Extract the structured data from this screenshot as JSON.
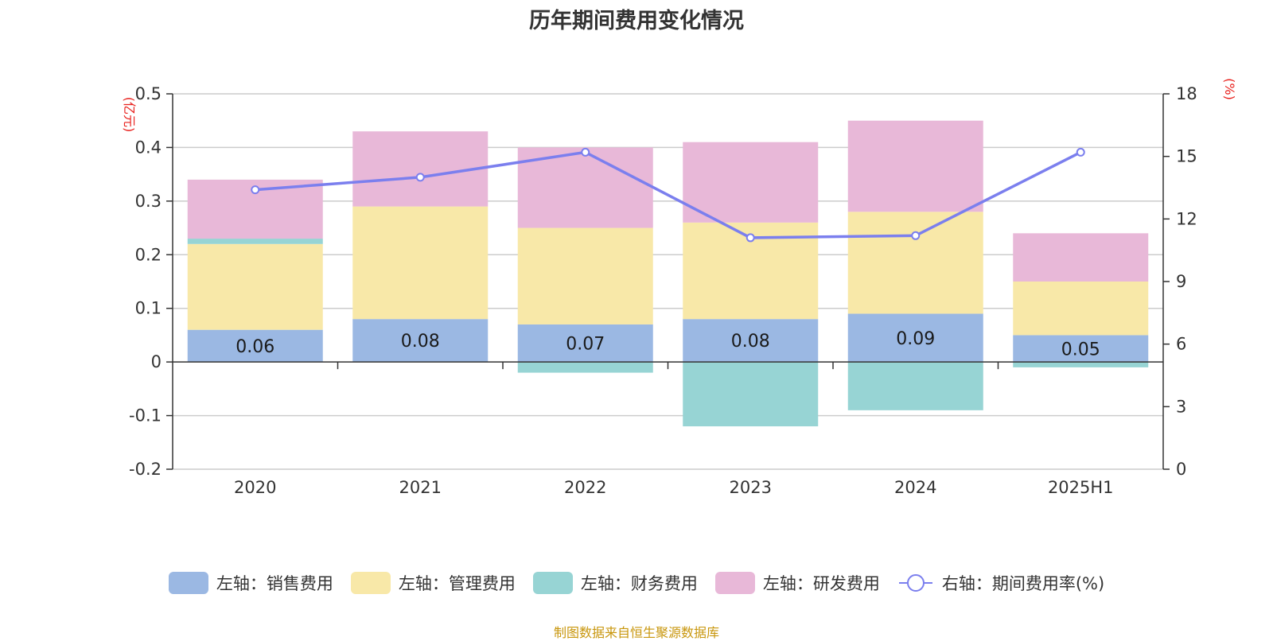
{
  "title": "历年期间费用变化情况",
  "source": "制图数据来自恒生聚源数据库",
  "chart_data": {
    "type": "bar",
    "stacked": true,
    "title": "历年期间费用变化情况",
    "categories": [
      "2020",
      "2021",
      "2022",
      "2023",
      "2024",
      "2025H1"
    ],
    "left_axis": {
      "unit": "(亿元)",
      "ylim": [
        -0.2,
        0.5
      ],
      "ticks": [
        -0.2,
        -0.1,
        0,
        0.1,
        0.2,
        0.3,
        0.4,
        0.5
      ]
    },
    "right_axis": {
      "unit": "(%)",
      "ylim": [
        0,
        18
      ],
      "ticks": [
        0,
        3,
        6,
        9,
        12,
        15,
        18
      ]
    },
    "grid": true,
    "legend_position": "bottom",
    "series": [
      {
        "name": "左轴：销售费用",
        "axis": "left",
        "type": "bar",
        "color": "#9bb8e3",
        "values": [
          0.06,
          0.08,
          0.07,
          0.08,
          0.09,
          0.05
        ],
        "labels": [
          "0.06",
          "0.08",
          "0.07",
          "0.08",
          "0.09",
          "0.05"
        ]
      },
      {
        "name": "左轴：管理费用",
        "axis": "left",
        "type": "bar",
        "color": "#f8e8a8",
        "values": [
          0.16,
          0.21,
          0.18,
          0.18,
          0.19,
          0.1
        ]
      },
      {
        "name": "左轴：财务费用",
        "axis": "left",
        "type": "bar",
        "color": "#97d4d4",
        "values": [
          0.01,
          0.0,
          -0.02,
          -0.12,
          -0.09,
          -0.01
        ]
      },
      {
        "name": "左轴：研发费用",
        "axis": "left",
        "type": "bar",
        "color": "#e8b8d8",
        "values": [
          0.11,
          0.14,
          0.15,
          0.15,
          0.17,
          0.09
        ]
      },
      {
        "name": "右轴：期间费用率(%)",
        "axis": "right",
        "type": "line",
        "color": "#7b7fee",
        "values": [
          13.4,
          14.0,
          15.2,
          11.1,
          11.2,
          15.2
        ]
      }
    ]
  }
}
